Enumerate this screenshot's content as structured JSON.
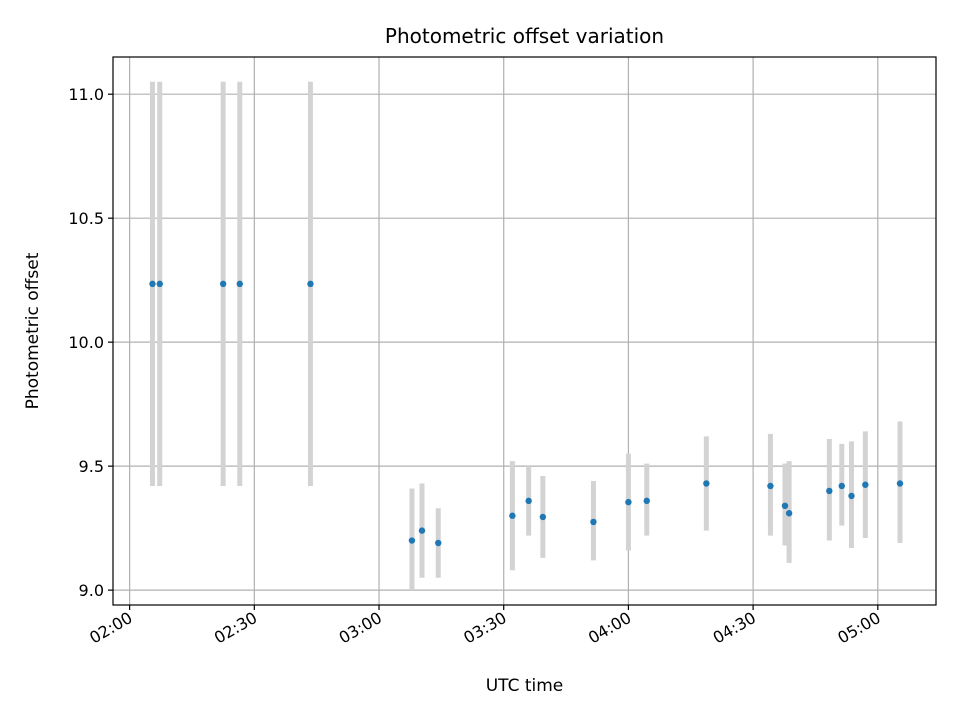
{
  "chart_data": {
    "type": "scatter",
    "title": "Photometric offset variation",
    "xlabel": "UTC time",
    "ylabel": "Photometric offset",
    "grid": true,
    "colors": {
      "point": "#1f77b4",
      "errorbar": "#d3d3d3",
      "grid": "#b0b0b0"
    },
    "xlim": [
      "01:56",
      "05:14"
    ],
    "ylim": [
      8.94,
      11.15
    ],
    "x_ticks": [
      "02:00",
      "02:30",
      "03:00",
      "03:30",
      "04:00",
      "04:30",
      "05:00"
    ],
    "y_ticks": [
      "9.0",
      "9.5",
      "10.0",
      "10.5",
      "11.0"
    ],
    "points": [
      {
        "x": "02:05:30",
        "y": 10.235,
        "ylow": 9.42,
        "yhigh": 11.05
      },
      {
        "x": "02:07:15",
        "y": 10.235,
        "ylow": 9.42,
        "yhigh": 11.05
      },
      {
        "x": "02:22:30",
        "y": 10.235,
        "ylow": 9.42,
        "yhigh": 11.05
      },
      {
        "x": "02:26:30",
        "y": 10.235,
        "ylow": 9.42,
        "yhigh": 11.05
      },
      {
        "x": "02:43:30",
        "y": 10.235,
        "ylow": 9.42,
        "yhigh": 11.05
      },
      {
        "x": "03:07:55",
        "y": 9.2,
        "ylow": 9.0,
        "yhigh": 9.41
      },
      {
        "x": "03:10:20",
        "y": 9.24,
        "ylow": 9.05,
        "yhigh": 9.43
      },
      {
        "x": "03:14:15",
        "y": 9.19,
        "ylow": 9.05,
        "yhigh": 9.33
      },
      {
        "x": "03:32:05",
        "y": 9.3,
        "ylow": 9.08,
        "yhigh": 9.52
      },
      {
        "x": "03:36:00",
        "y": 9.36,
        "ylow": 9.22,
        "yhigh": 9.5
      },
      {
        "x": "03:39:25",
        "y": 9.295,
        "ylow": 9.13,
        "yhigh": 9.46
      },
      {
        "x": "03:51:35",
        "y": 9.275,
        "ylow": 9.12,
        "yhigh": 9.44
      },
      {
        "x": "04:00:00",
        "y": 9.355,
        "ylow": 9.16,
        "yhigh": 9.55
      },
      {
        "x": "04:04:25",
        "y": 9.36,
        "ylow": 9.22,
        "yhigh": 9.51
      },
      {
        "x": "04:18:45",
        "y": 9.43,
        "ylow": 9.24,
        "yhigh": 9.62
      },
      {
        "x": "04:34:10",
        "y": 9.42,
        "ylow": 9.22,
        "yhigh": 9.63
      },
      {
        "x": "04:37:40",
        "y": 9.34,
        "ylow": 9.18,
        "yhigh": 9.51
      },
      {
        "x": "04:38:40",
        "y": 9.31,
        "ylow": 9.11,
        "yhigh": 9.52
      },
      {
        "x": "04:48:20",
        "y": 9.4,
        "ylow": 9.2,
        "yhigh": 9.61
      },
      {
        "x": "04:51:20",
        "y": 9.42,
        "ylow": 9.26,
        "yhigh": 9.59
      },
      {
        "x": "04:53:40",
        "y": 9.38,
        "ylow": 9.17,
        "yhigh": 9.6
      },
      {
        "x": "04:57:00",
        "y": 9.425,
        "ylow": 9.21,
        "yhigh": 9.64
      },
      {
        "x": "05:05:20",
        "y": 9.43,
        "ylow": 9.19,
        "yhigh": 9.68
      }
    ]
  }
}
